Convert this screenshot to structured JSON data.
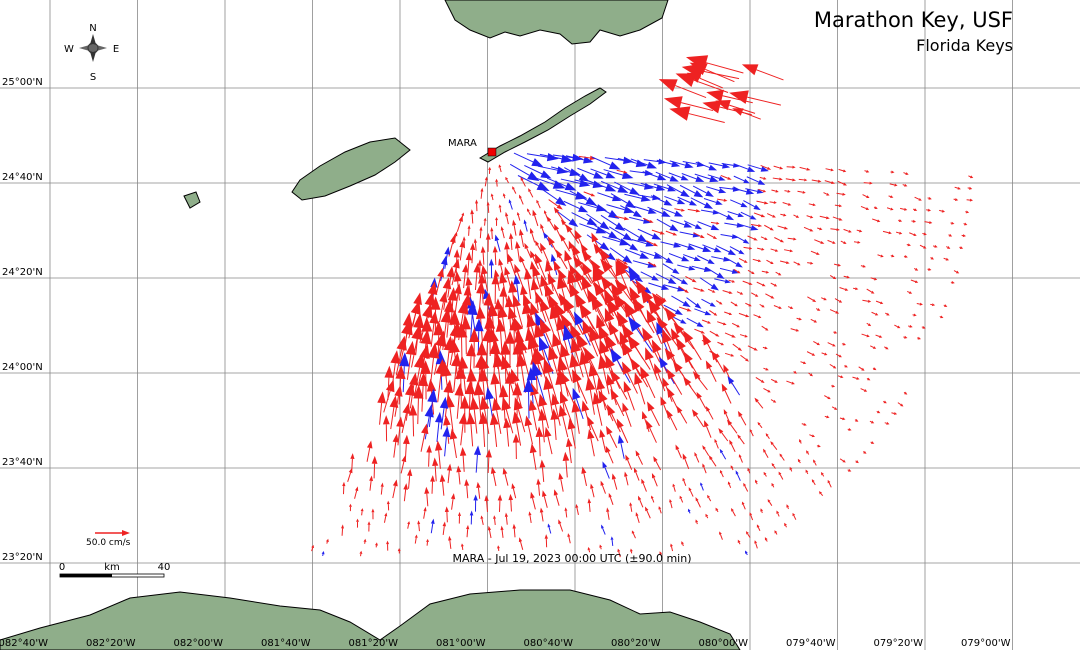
{
  "header": {
    "title": "Marathon Key, USF",
    "subtitle": "Florida Keys"
  },
  "compass": {
    "n": "N",
    "s": "S",
    "e": "E",
    "w": "W"
  },
  "station": "MARA",
  "scale": {
    "speed": "50.0 cm/s",
    "start": "0",
    "unit": "km",
    "end": "40"
  },
  "caption": "MARA - Jul 19, 2023 00:00 UTC (±90.0 min)",
  "latitude_labels": [
    "25°00'N",
    "24°40'N",
    "24°20'N",
    "24°00'N",
    "23°40'N",
    "23°20'N"
  ],
  "longitude_labels": [
    "082°40'W",
    "082°20'W",
    "082°00'W",
    "081°40'W",
    "081°20'W",
    "081°00'W",
    "080°40'W",
    "080°20'W",
    "080°00'W",
    "079°40'W",
    "079°20'W",
    "079°00'W"
  ]
}
